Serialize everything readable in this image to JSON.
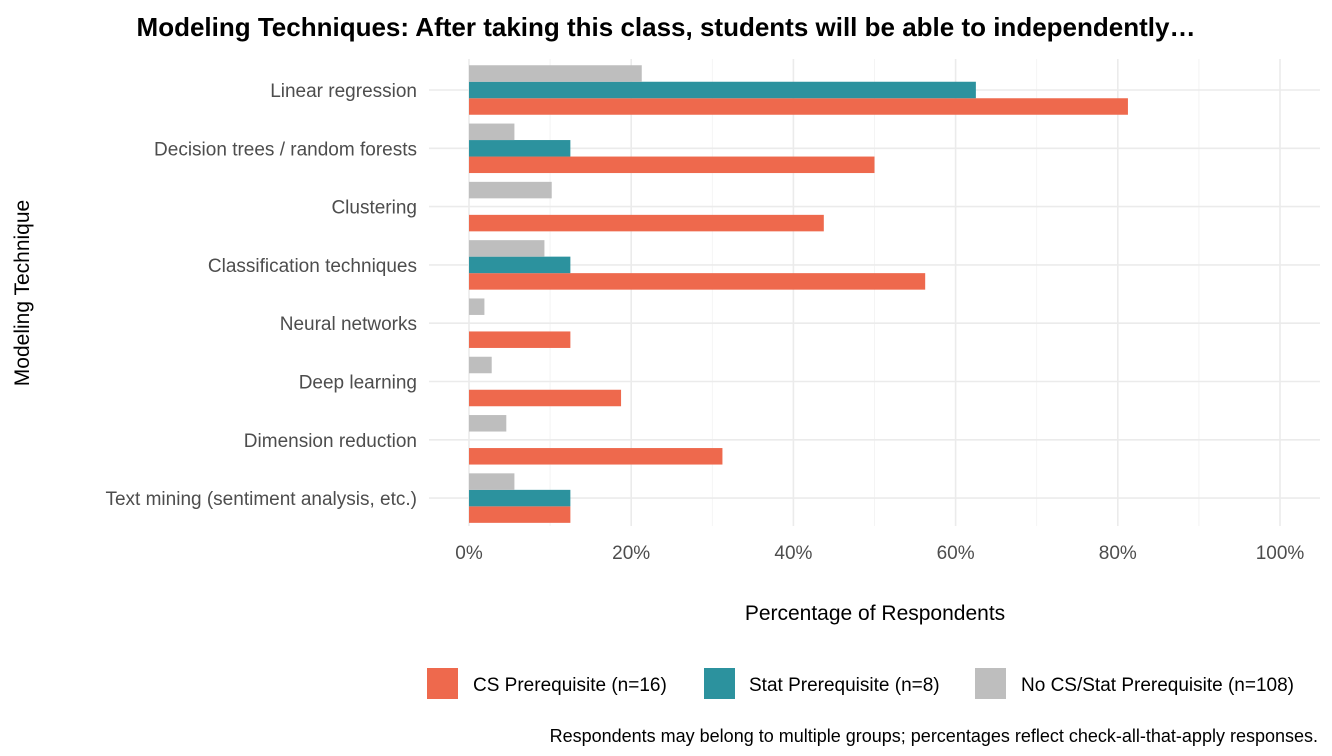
{
  "chart_data": {
    "type": "bar",
    "orientation": "horizontal",
    "title": "Modeling Techniques: After taking this class, students will be able to independently…",
    "xlabel": "Percentage of Respondents",
    "ylabel": "Modeling Technique",
    "xlim": [
      0,
      100
    ],
    "xticks": [
      "0%",
      "20%",
      "40%",
      "60%",
      "80%",
      "100%"
    ],
    "grid": true,
    "legend_position": "bottom",
    "categories": [
      "Linear regression",
      "Decision trees / random forests",
      "Clustering",
      "Classification techniques",
      "Neural networks",
      "Deep learning",
      "Dimension reduction",
      "Text mining (sentiment analysis, etc.)"
    ],
    "series": [
      {
        "name": "CS Prerequisite (n=16)",
        "color": "#EE694D",
        "values": [
          81.25,
          50.0,
          43.75,
          56.25,
          12.5,
          18.75,
          31.25,
          12.5
        ]
      },
      {
        "name": "Stat Prerequisite (n=8)",
        "color": "#2C929E",
        "values": [
          62.5,
          12.5,
          0,
          12.5,
          0,
          0,
          0,
          12.5
        ]
      },
      {
        "name": "No CS/Stat Prerequisite (n=108)",
        "color": "#BEBEBE",
        "values": [
          21.3,
          5.6,
          10.2,
          9.3,
          1.9,
          2.8,
          4.6,
          5.6
        ]
      }
    ],
    "caption": "Respondents may belong to multiple groups; percentages reflect check-all-that-apply responses."
  }
}
